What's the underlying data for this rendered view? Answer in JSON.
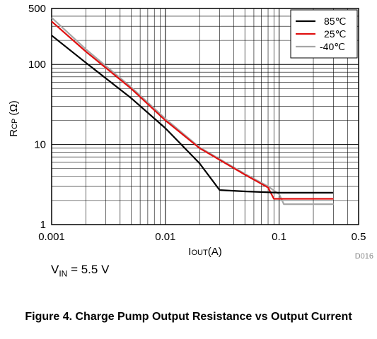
{
  "chart_data": {
    "type": "line",
    "xscale": "log",
    "yscale": "log",
    "xlim": [
      0.001,
      0.5
    ],
    "ylim": [
      1,
      500
    ],
    "xticks": [
      {
        "value": 0.001,
        "label": "0.001"
      },
      {
        "value": 0.01,
        "label": "0.01"
      },
      {
        "value": 0.1,
        "label": "0.1"
      },
      {
        "value": 0.5,
        "label": "0.5"
      }
    ],
    "yticks": [
      {
        "value": 1,
        "label": "1"
      },
      {
        "value": 10,
        "label": "10"
      },
      {
        "value": 100,
        "label": "100"
      },
      {
        "value": 500,
        "label": "500"
      }
    ],
    "xlabel": {
      "main": "I",
      "sub": "OUT",
      "suffix": "(A)"
    },
    "ylabel": {
      "main": "R",
      "sub": "CP",
      "suffix": " (Ω)"
    },
    "grid": true,
    "legend_position": "top-right",
    "series": [
      {
        "name": "85℃",
        "color": "#000000",
        "points": [
          [
            0.001,
            230
          ],
          [
            0.002,
            105
          ],
          [
            0.005,
            38
          ],
          [
            0.01,
            16
          ],
          [
            0.02,
            5.8
          ],
          [
            0.03,
            2.7
          ],
          [
            0.05,
            2.6
          ],
          [
            0.1,
            2.5
          ],
          [
            0.3,
            2.5
          ]
        ]
      },
      {
        "name": "25℃",
        "color": "#e01010",
        "points": [
          [
            0.001,
            345
          ],
          [
            0.002,
            145
          ],
          [
            0.005,
            50
          ],
          [
            0.01,
            20
          ],
          [
            0.02,
            9
          ],
          [
            0.05,
            4.2
          ],
          [
            0.08,
            2.9
          ],
          [
            0.09,
            2.1
          ],
          [
            0.3,
            2.1
          ]
        ]
      },
      {
        "name": "-40℃",
        "color": "#a6a6a6",
        "points": [
          [
            0.001,
            385
          ],
          [
            0.002,
            155
          ],
          [
            0.005,
            52
          ],
          [
            0.01,
            21
          ],
          [
            0.02,
            9.2
          ],
          [
            0.05,
            4.3
          ],
          [
            0.08,
            3.0
          ],
          [
            0.1,
            2.4
          ],
          [
            0.11,
            1.8
          ],
          [
            0.3,
            1.8
          ]
        ]
      }
    ]
  },
  "figure_id": "D016",
  "condition": {
    "main": "V",
    "sub": "IN",
    "suffix": " = 5.5 V"
  },
  "caption": "Figure 4. Charge Pump Output Resistance vs Output Current"
}
